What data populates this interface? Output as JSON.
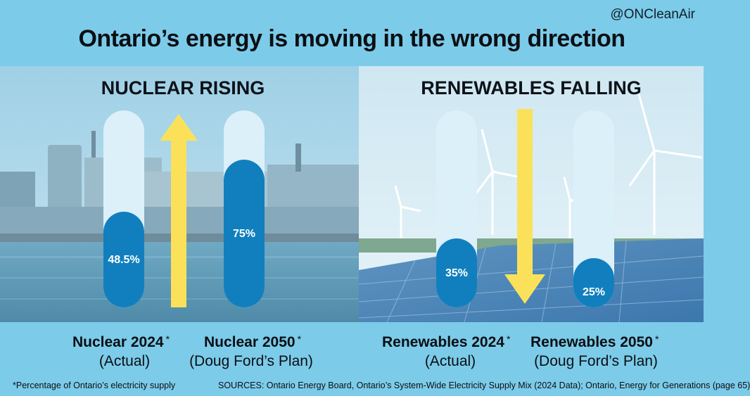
{
  "handle": "@ONCleanAir",
  "title": "Ontario’s energy is moving in the wrong direction",
  "colors": {
    "background": "#7ccbe9",
    "bar_track": "#dcf0f9",
    "bar_fill": "#117fbe",
    "arrow": "#fbe15a"
  },
  "chart_data": [
    {
      "type": "bar",
      "title": "NUCLEAR RISING",
      "trend": "up",
      "unit": "%",
      "ylim": [
        0,
        100
      ],
      "categories": [
        "Nuclear 2024",
        "Nuclear 2050"
      ],
      "sublabels": [
        "(Actual)",
        "(Doug Ford’s Plan)"
      ],
      "values": [
        48.5,
        75
      ],
      "value_labels": [
        "48.5%",
        "75%"
      ],
      "asterisk": "*"
    },
    {
      "type": "bar",
      "title": "RENEWABLES FALLING",
      "trend": "down",
      "unit": "%",
      "ylim": [
        0,
        100
      ],
      "categories": [
        "Renewables 2024",
        "Renewables 2050"
      ],
      "sublabels": [
        "(Actual)",
        "(Doug Ford’s Plan)"
      ],
      "values": [
        35,
        25
      ],
      "value_labels": [
        "35%",
        "25%"
      ],
      "asterisk": "*"
    }
  ],
  "footnote": "*Percentage of Ontario’s electricity supply",
  "sources": "SOURCES: Ontario Energy Board, Ontario’s System-Wide Electricity Supply Mix (2024 Data); Ontario, Energy for Generations (page 65)"
}
